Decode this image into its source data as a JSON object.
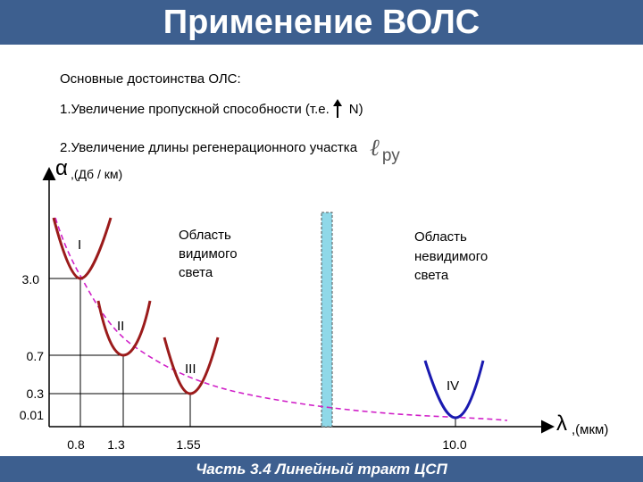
{
  "slide": {
    "title": "Применение ВОЛС",
    "footer": "Часть 3.4 Линейный тракт ЦСП"
  },
  "content": {
    "heading": "Основные достоинства ОЛС:",
    "point1_prefix": "1.Увеличение пропускной способности (т.е.",
    "point1_suffix": "N)",
    "point2": "2.Увеличение длины регенерационного участка",
    "point2_symbol": "ℓ",
    "point2_subscript": "ру"
  },
  "chart_data": {
    "type": "line",
    "y_axis": {
      "symbol": "α",
      "unit": ",(Дб / км)"
    },
    "x_axis": {
      "symbol": "λ",
      "unit": ",(мкм)"
    },
    "y_ticks": [
      "3.0",
      "0.7",
      "0.3",
      "0.01"
    ],
    "x_ticks": [
      "0.8",
      "1.3",
      "1.55",
      "10.0"
    ],
    "windows": [
      {
        "label": "I",
        "x": 0.8,
        "y": 3.0
      },
      {
        "label": "II",
        "x": 1.3,
        "y": 0.7
      },
      {
        "label": "III",
        "x": 1.55,
        "y": 0.3
      },
      {
        "label": "IV",
        "x": 10.0,
        "y": 0.01
      }
    ],
    "regions": [
      {
        "label": "Область видимого света",
        "lines": [
          "Область",
          "видимого",
          "света"
        ]
      },
      {
        "label": "Область невидимого света",
        "lines": [
          "Область",
          "невидимого",
          "света"
        ]
      }
    ],
    "colors": {
      "window_curves": "#9b1b1b",
      "window_iv": "#1a1ab0",
      "envelope": "#d020c8",
      "separator": "#8fd8e8",
      "axes": "#000000"
    }
  }
}
